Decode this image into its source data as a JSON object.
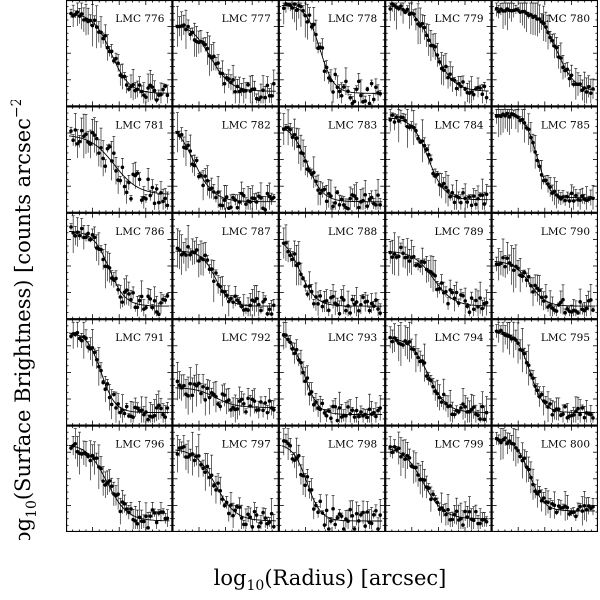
{
  "chart_data": {
    "type": "scatter",
    "description_axis": {
      "xlabel_base": "log",
      "xlabel_sub": "10",
      "xlabel_rest": "(Radius) [arcsec]",
      "ylabel_base": "log",
      "ylabel_sub": "10",
      "ylabel_rest": "(Surface Brightness) [counts arcsec",
      "ylabel_sup": "−2",
      "ylabel_end": "]"
    },
    "grid": "off",
    "layout": "5x5 panels",
    "panels": [
      {
        "label": "LMC 776",
        "core": 0.9,
        "r50": 0.42,
        "width": 0.09,
        "bg": 0.1,
        "noise": 0.05
      },
      {
        "label": "LMC 777",
        "core": 0.8,
        "r50": 0.35,
        "width": 0.1,
        "bg": 0.12,
        "noise": 0.06
      },
      {
        "label": "LMC 778",
        "core": 0.98,
        "r50": 0.38,
        "width": 0.07,
        "bg": 0.1,
        "noise": 0.08
      },
      {
        "label": "LMC 779",
        "core": 0.98,
        "r50": 0.45,
        "width": 0.1,
        "bg": 0.12,
        "noise": 0.05
      },
      {
        "label": "LMC 780",
        "core": 0.93,
        "r50": 0.62,
        "width": 0.09,
        "bg": 0.12,
        "noise": 0.03
      },
      {
        "label": "LMC 781",
        "core": 0.75,
        "r50": 0.45,
        "width": 0.12,
        "bg": 0.15,
        "noise": 0.12
      },
      {
        "label": "LMC 782",
        "core": 0.9,
        "r50": 0.18,
        "width": 0.1,
        "bg": 0.08,
        "noise": 0.06
      },
      {
        "label": "LMC 783",
        "core": 0.85,
        "r50": 0.25,
        "width": 0.08,
        "bg": 0.08,
        "noise": 0.05
      },
      {
        "label": "LMC 784",
        "core": 0.92,
        "r50": 0.4,
        "width": 0.08,
        "bg": 0.1,
        "noise": 0.05
      },
      {
        "label": "LMC 785",
        "core": 0.95,
        "r50": 0.42,
        "width": 0.06,
        "bg": 0.12,
        "noise": 0.03
      },
      {
        "label": "LMC 786",
        "core": 0.85,
        "r50": 0.4,
        "width": 0.08,
        "bg": 0.1,
        "noise": 0.07
      },
      {
        "label": "LMC 787",
        "core": 0.65,
        "r50": 0.4,
        "width": 0.07,
        "bg": 0.1,
        "noise": 0.06
      },
      {
        "label": "LMC 788",
        "core": 0.8,
        "r50": 0.18,
        "width": 0.08,
        "bg": 0.1,
        "noise": 0.06
      },
      {
        "label": "LMC 789",
        "core": 0.65,
        "r50": 0.45,
        "width": 0.1,
        "bg": 0.1,
        "noise": 0.06
      },
      {
        "label": "LMC 790",
        "core": 0.55,
        "r50": 0.35,
        "width": 0.08,
        "bg": 0.1,
        "noise": 0.05
      },
      {
        "label": "LMC 791",
        "core": 0.9,
        "r50": 0.32,
        "width": 0.07,
        "bg": 0.1,
        "noise": 0.05
      },
      {
        "label": "LMC 792",
        "core": 0.35,
        "r50": 0.4,
        "width": 0.1,
        "bg": 0.15,
        "noise": 0.06
      },
      {
        "label": "LMC 793",
        "core": 0.9,
        "r50": 0.22,
        "width": 0.07,
        "bg": 0.08,
        "noise": 0.05
      },
      {
        "label": "LMC 794",
        "core": 0.85,
        "r50": 0.4,
        "width": 0.09,
        "bg": 0.1,
        "noise": 0.05
      },
      {
        "label": "LMC 795",
        "core": 0.92,
        "r50": 0.35,
        "width": 0.07,
        "bg": 0.1,
        "noise": 0.04
      },
      {
        "label": "LMC 796",
        "core": 0.85,
        "r50": 0.38,
        "width": 0.1,
        "bg": 0.08,
        "noise": 0.07
      },
      {
        "label": "LMC 797",
        "core": 0.8,
        "r50": 0.4,
        "width": 0.1,
        "bg": 0.08,
        "noise": 0.06
      },
      {
        "label": "LMC 798",
        "core": 0.85,
        "r50": 0.25,
        "width": 0.07,
        "bg": 0.08,
        "noise": 0.08
      },
      {
        "label": "LMC 799",
        "core": 0.82,
        "r50": 0.35,
        "width": 0.1,
        "bg": 0.1,
        "noise": 0.05
      },
      {
        "label": "LMC 800",
        "core": 0.9,
        "r50": 0.35,
        "width": 0.07,
        "bg": 0.18,
        "noise": 0.04
      }
    ]
  }
}
